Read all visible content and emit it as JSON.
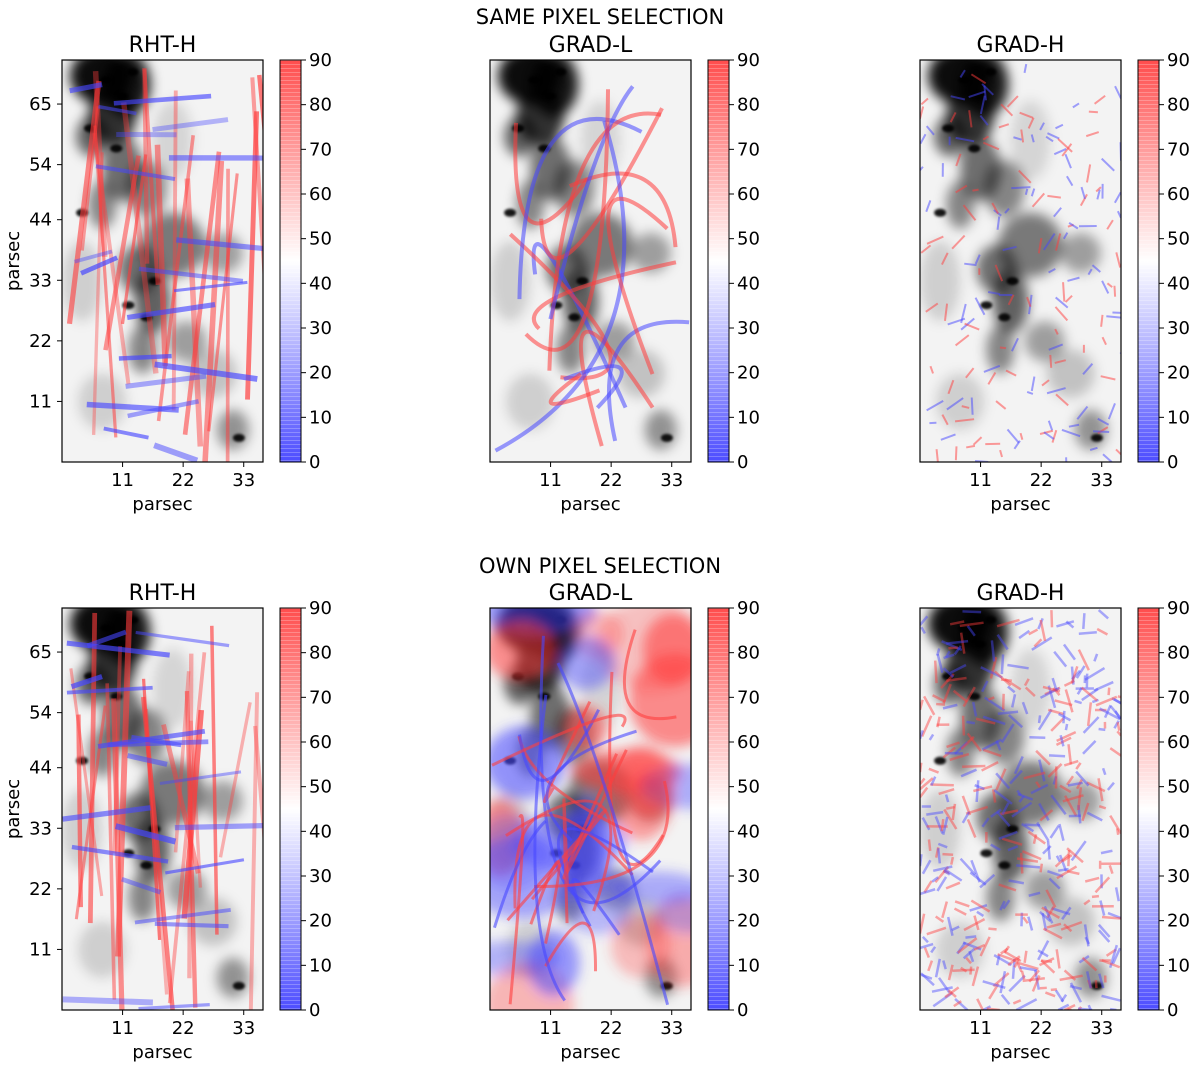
{
  "chart_data": {
    "type": "heatmap",
    "description_colormap": "grayscale intensity with red-blue overlay of angle",
    "overlay_colors": {
      "low": "#3a3aff",
      "mid": "#ffffff",
      "high": "#ff3a3a",
      "background_dark": "#000000"
    },
    "colorbar_range": [
      0,
      90
    ],
    "colorbar_ticks": [
      "0",
      "10",
      "20",
      "30",
      "40",
      "50",
      "60",
      "70",
      "80",
      "90"
    ],
    "x_ticks": [
      "11",
      "22",
      "33"
    ],
    "y_ticks": [
      "11",
      "22",
      "33",
      "44",
      "54",
      "65"
    ],
    "xlabel": "parsec",
    "ylabel": "parsec",
    "rows": [
      {
        "title": "SAME PIXEL SELECTION",
        "panels": [
          {
            "title": "RHT-H",
            "style": "rht"
          },
          {
            "title": "GRAD-L",
            "style": "gradl-sparse"
          },
          {
            "title": "GRAD-H",
            "style": "gradh-sparse"
          }
        ]
      },
      {
        "title": "OWN PIXEL SELECTION",
        "panels": [
          {
            "title": "RHT-H",
            "style": "rht"
          },
          {
            "title": "GRAD-L",
            "style": "gradl-dense"
          },
          {
            "title": "GRAD-H",
            "style": "gradh-dense"
          }
        ]
      }
    ]
  }
}
